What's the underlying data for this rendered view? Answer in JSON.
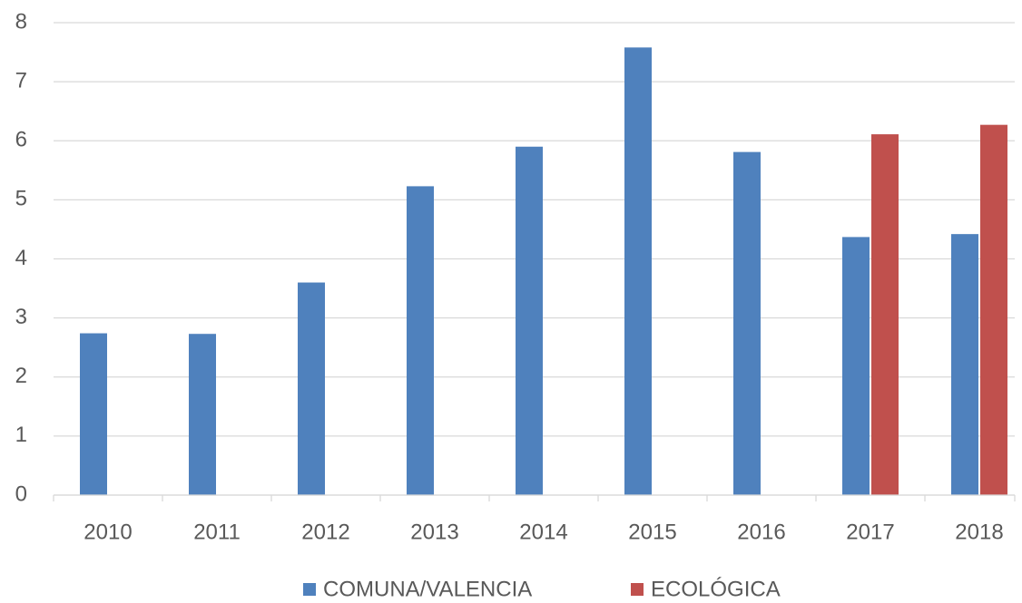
{
  "chart_data": {
    "type": "bar",
    "categories": [
      "2010",
      "2011",
      "2012",
      "2013",
      "2014",
      "2015",
      "2016",
      "2017",
      "2018"
    ],
    "series": [
      {
        "name": "COMUNA/VALENCIA",
        "color": "#4f81bd",
        "values": [
          2.74,
          2.73,
          3.6,
          5.23,
          5.9,
          7.58,
          5.81,
          4.37,
          4.42
        ]
      },
      {
        "name": "ECOLÓGICA",
        "color": "#c0504d",
        "values": [
          null,
          null,
          null,
          null,
          null,
          null,
          null,
          6.11,
          6.27
        ]
      }
    ],
    "ylim": [
      0,
      8
    ],
    "yticks": [
      0,
      1,
      2,
      3,
      4,
      5,
      6,
      7,
      8
    ],
    "grid": true,
    "legend": "bottom"
  }
}
